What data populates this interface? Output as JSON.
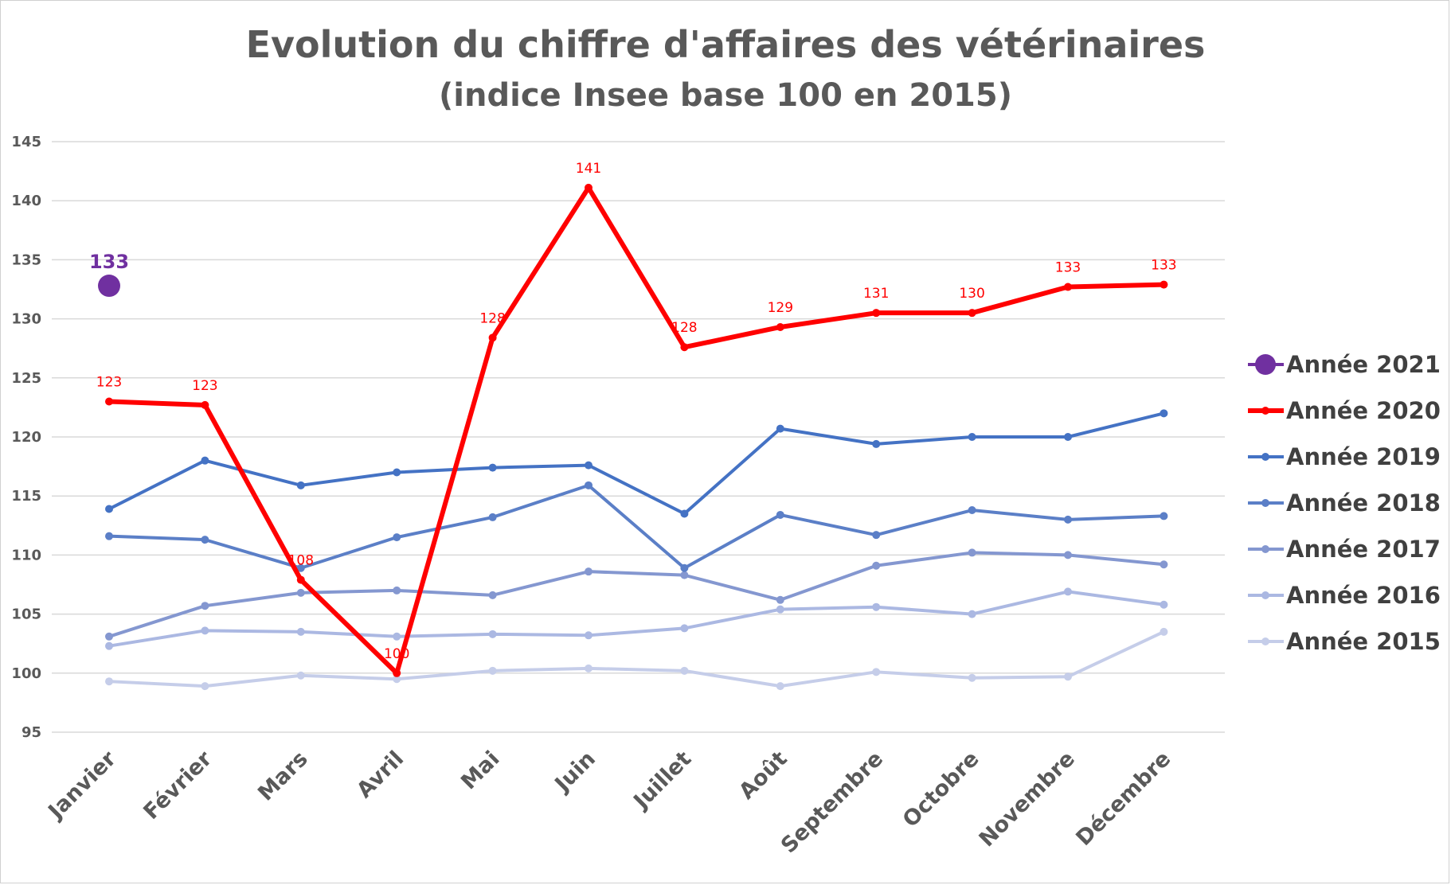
{
  "chart_data": {
    "type": "line",
    "title": "Evolution du chiffre d'affaires des vétérinaires",
    "subtitle": "(indice Insee base 100 en 2015)",
    "xlabel": "",
    "ylabel": "",
    "categories": [
      "Janvier",
      "Février",
      "Mars",
      "Avril",
      "Mai",
      "Juin",
      "Juillet",
      "Août",
      "Septembre",
      "Octobre",
      "Novembre",
      "Décembre"
    ],
    "ylim": [
      95,
      145
    ],
    "yticks": [
      95,
      100,
      105,
      110,
      115,
      120,
      125,
      130,
      135,
      140,
      145
    ],
    "grid": "horizontal",
    "legend_position": "right",
    "series": [
      {
        "name": "Année 2021",
        "color": "#7030a0",
        "values": [
          132.8,
          null,
          null,
          null,
          null,
          null,
          null,
          null,
          null,
          null,
          null,
          null
        ],
        "labels": [
          "133",
          "",
          "",
          "",
          "",
          "",
          "",
          "",
          "",
          "",
          "",
          ""
        ]
      },
      {
        "name": "Année 2020",
        "color": "#ff0000",
        "values": [
          123.0,
          122.7,
          107.9,
          100.0,
          128.4,
          141.1,
          127.6,
          129.3,
          130.5,
          130.5,
          132.7,
          132.9
        ],
        "labels": [
          "123",
          "123",
          "108",
          "100",
          "128",
          "141",
          "128",
          "129",
          "131",
          "130",
          "133",
          "133"
        ]
      },
      {
        "name": "Année 2019",
        "color": "#4472c4",
        "values": [
          113.9,
          118.0,
          115.9,
          117.0,
          117.4,
          117.6,
          113.5,
          120.7,
          119.4,
          120.0,
          120.0,
          122.0
        ]
      },
      {
        "name": "Année 2018",
        "color": "#5b7fc7",
        "values": [
          111.6,
          111.3,
          108.9,
          111.5,
          113.2,
          115.9,
          108.9,
          113.4,
          111.7,
          113.8,
          113.0,
          113.3
        ]
      },
      {
        "name": "Année 2017",
        "color": "#8497d0",
        "values": [
          103.1,
          105.7,
          106.8,
          107.0,
          106.6,
          108.6,
          108.3,
          106.2,
          109.1,
          110.2,
          110.0,
          109.2
        ]
      },
      {
        "name": "Année 2016",
        "color": "#abb8e2",
        "values": [
          102.3,
          103.6,
          103.5,
          103.1,
          103.3,
          103.2,
          103.8,
          105.4,
          105.6,
          105.0,
          106.9,
          105.8
        ]
      },
      {
        "name": "Année 2015",
        "color": "#c5cde9",
        "values": [
          99.3,
          98.9,
          99.8,
          99.5,
          100.2,
          100.4,
          100.2,
          98.9,
          100.1,
          99.6,
          99.7,
          103.5
        ]
      }
    ]
  }
}
